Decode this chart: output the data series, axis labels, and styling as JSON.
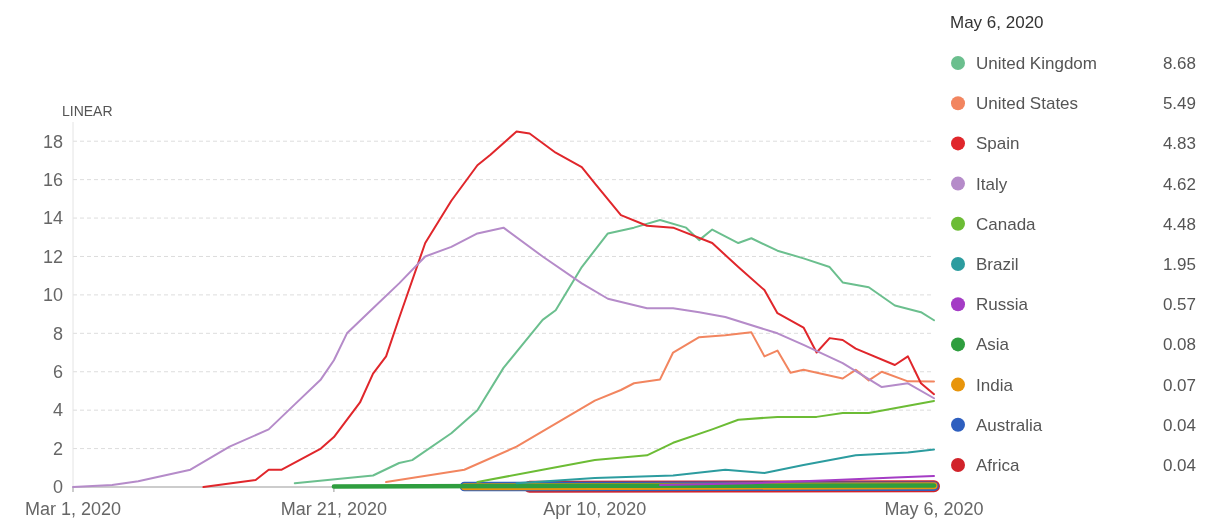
{
  "chart_data": {
    "type": "line",
    "legend_title": "May 6, 2020",
    "annotations": [
      "LINEAR",
      "8.68",
      "5.49",
      "4.83",
      "4.62",
      "4.48",
      "1.95",
      "0.57",
      "0.08",
      "0.07",
      "0.04",
      "0.04"
    ],
    "xlim": [
      "2020-03-01",
      "2020-05-06"
    ],
    "xticks": [
      {
        "value": "2020-03-01",
        "label": "Mar 1, 2020"
      },
      {
        "value": "2020-03-21",
        "label": "Mar 21, 2020"
      },
      {
        "value": "2020-04-10",
        "label": "Apr 10, 2020"
      },
      {
        "value": "2020-05-06",
        "label": "May 6, 2020"
      }
    ],
    "ylim": [
      0,
      19
    ],
    "yticks": [
      0,
      2,
      4,
      6,
      8,
      10,
      12,
      14,
      16,
      18
    ],
    "grid": "y",
    "legend": "right",
    "marker": "none",
    "line_style": "solid",
    "series": [
      {
        "name": "United Kingdom",
        "color": "#6bbf8e",
        "x": [
          "2020-03-18",
          "2020-03-24",
          "2020-03-26",
          "2020-03-27",
          "2020-03-30",
          "2020-04-01",
          "2020-04-03",
          "2020-04-06",
          "2020-04-07",
          "2020-04-09",
          "2020-04-11",
          "2020-04-13",
          "2020-04-15",
          "2020-04-17",
          "2020-04-18",
          "2020-04-19",
          "2020-04-21",
          "2020-04-22",
          "2020-04-24",
          "2020-04-26",
          "2020-04-28",
          "2020-04-29",
          "2020-05-01",
          "2020-05-03",
          "2020-05-05",
          "2020-05-06"
        ],
        "values": [
          0.2,
          0.6,
          1.25,
          1.4,
          2.8,
          4.0,
          6.2,
          8.7,
          9.2,
          11.45,
          13.2,
          13.5,
          13.9,
          13.5,
          12.85,
          13.4,
          12.7,
          12.95,
          12.3,
          11.9,
          11.45,
          10.65,
          10.4,
          9.45,
          9.1,
          8.68
        ]
      },
      {
        "name": "United States",
        "color": "#f2855f",
        "x": [
          "2020-03-25",
          "2020-03-31",
          "2020-04-04",
          "2020-04-07",
          "2020-04-10",
          "2020-04-12",
          "2020-04-13",
          "2020-04-15",
          "2020-04-16",
          "2020-04-18",
          "2020-04-20",
          "2020-04-22",
          "2020-04-23",
          "2020-04-24",
          "2020-04-25",
          "2020-04-26",
          "2020-04-29",
          "2020-04-30",
          "2020-05-01",
          "2020-05-02",
          "2020-05-04",
          "2020-05-06"
        ],
        "values": [
          0.26,
          0.9,
          2.1,
          3.3,
          4.5,
          5.05,
          5.4,
          5.6,
          7.0,
          7.8,
          7.9,
          8.05,
          6.8,
          7.1,
          5.95,
          6.1,
          5.65,
          6.1,
          5.55,
          6.0,
          5.5,
          5.49
        ]
      },
      {
        "name": "Spain",
        "color": "#e0262b",
        "x": [
          "2020-03-11",
          "2020-03-15",
          "2020-03-16",
          "2020-03-17",
          "2020-03-20",
          "2020-03-21",
          "2020-03-23",
          "2020-03-24",
          "2020-03-25",
          "2020-03-26",
          "2020-03-28",
          "2020-03-30",
          "2020-04-01",
          "2020-04-02",
          "2020-04-04",
          "2020-04-05",
          "2020-04-07",
          "2020-04-09",
          "2020-04-10",
          "2020-04-12",
          "2020-04-14",
          "2020-04-16",
          "2020-04-19",
          "2020-04-21",
          "2020-04-23",
          "2020-04-24",
          "2020-04-26",
          "2020-04-27",
          "2020-04-28",
          "2020-04-29",
          "2020-04-30",
          "2020-05-03",
          "2020-05-04",
          "2020-05-05",
          "2020-05-06"
        ],
        "values": [
          0,
          0.36,
          0.9,
          0.9,
          2.0,
          2.6,
          4.4,
          5.9,
          6.8,
          8.8,
          12.7,
          14.9,
          16.75,
          17.3,
          18.5,
          18.4,
          17.4,
          16.65,
          15.8,
          14.15,
          13.6,
          13.5,
          12.7,
          11.45,
          10.25,
          9.05,
          8.3,
          7.0,
          7.75,
          7.65,
          7.2,
          6.35,
          6.8,
          5.4,
          4.83
        ]
      },
      {
        "name": "Italy",
        "color": "#b58bc9",
        "x": [
          "2020-03-01",
          "2020-03-04",
          "2020-03-06",
          "2020-03-10",
          "2020-03-13",
          "2020-03-16",
          "2020-03-18",
          "2020-03-20",
          "2020-03-21",
          "2020-03-22",
          "2020-03-24",
          "2020-03-26",
          "2020-03-28",
          "2020-03-30",
          "2020-04-01",
          "2020-04-03",
          "2020-04-06",
          "2020-04-09",
          "2020-04-11",
          "2020-04-14",
          "2020-04-16",
          "2020-04-18",
          "2020-04-20",
          "2020-04-24",
          "2020-04-26",
          "2020-04-29",
          "2020-05-02",
          "2020-05-04",
          "2020-05-06"
        ],
        "values": [
          0,
          0.1,
          0.3,
          0.9,
          2.1,
          3.0,
          4.3,
          5.6,
          6.6,
          8.0,
          9.3,
          10.6,
          12.0,
          12.5,
          13.2,
          13.5,
          12.0,
          10.6,
          9.8,
          9.3,
          9.3,
          9.1,
          8.85,
          8.0,
          7.4,
          6.45,
          5.2,
          5.4,
          4.62
        ]
      },
      {
        "name": "Canada",
        "color": "#6cbc35",
        "x": [
          "2020-04-01",
          "2020-04-06",
          "2020-04-10",
          "2020-04-14",
          "2020-04-16",
          "2020-04-19",
          "2020-04-21",
          "2020-04-24",
          "2020-04-27",
          "2020-04-29",
          "2020-05-01",
          "2020-05-06"
        ],
        "values": [
          0.26,
          0.9,
          1.4,
          1.65,
          2.3,
          3.0,
          3.5,
          3.65,
          3.65,
          3.85,
          3.85,
          4.48
        ]
      },
      {
        "name": "Brazil",
        "color": "#2c9c9f",
        "x": [
          "2020-04-04",
          "2020-04-10",
          "2020-04-16",
          "2020-04-20",
          "2020-04-23",
          "2020-04-26",
          "2020-04-30",
          "2020-05-04",
          "2020-05-06"
        ],
        "values": [
          0.2,
          0.47,
          0.6,
          0.9,
          0.73,
          1.15,
          1.65,
          1.8,
          1.95
        ]
      },
      {
        "name": "Russia",
        "color": "#a43cc5",
        "x": [
          "2020-04-15",
          "2020-04-22",
          "2020-04-28",
          "2020-05-03",
          "2020-05-06"
        ],
        "values": [
          0.1,
          0.2,
          0.35,
          0.5,
          0.57
        ]
      },
      {
        "name": "Asia",
        "color": "#2f9e3f",
        "x": [
          "2020-03-21",
          "2020-04-10",
          "2020-05-06"
        ],
        "values": [
          0.03,
          0.06,
          0.08
        ]
      },
      {
        "name": "India",
        "color": "#e8950c",
        "x": [
          "2020-03-31",
          "2020-04-20",
          "2020-05-06"
        ],
        "values": [
          0.01,
          0.04,
          0.07
        ]
      },
      {
        "name": "Australia",
        "color": "#2e5fbf",
        "x": [
          "2020-03-31",
          "2020-04-20",
          "2020-05-06"
        ],
        "values": [
          0.02,
          0.04,
          0.04
        ]
      },
      {
        "name": "Africa",
        "color": "#d1232a",
        "x": [
          "2020-04-05",
          "2020-04-20",
          "2020-05-06"
        ],
        "values": [
          0.01,
          0.03,
          0.04
        ]
      }
    ]
  }
}
